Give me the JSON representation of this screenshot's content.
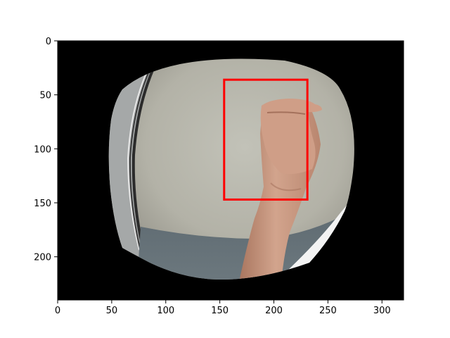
{
  "figure": {
    "x_ticks": [
      "0",
      "50",
      "100",
      "150",
      "200",
      "250",
      "300"
    ],
    "y_ticks": [
      "0",
      "50",
      "100",
      "150",
      "200"
    ],
    "x_range": [
      0,
      320
    ],
    "y_range": [
      0,
      240
    ],
    "bounding_box": {
      "x_min": 154,
      "y_min": 36,
      "x_max": 231,
      "y_max": 147,
      "color": "#ff0000"
    },
    "background_color": "#000000",
    "scene": {
      "description_icon": "fisheye-photo-of-raised-fist-against-wall",
      "wall_color": "#b6b5aa",
      "skin_color": "#c99a85"
    }
  }
}
